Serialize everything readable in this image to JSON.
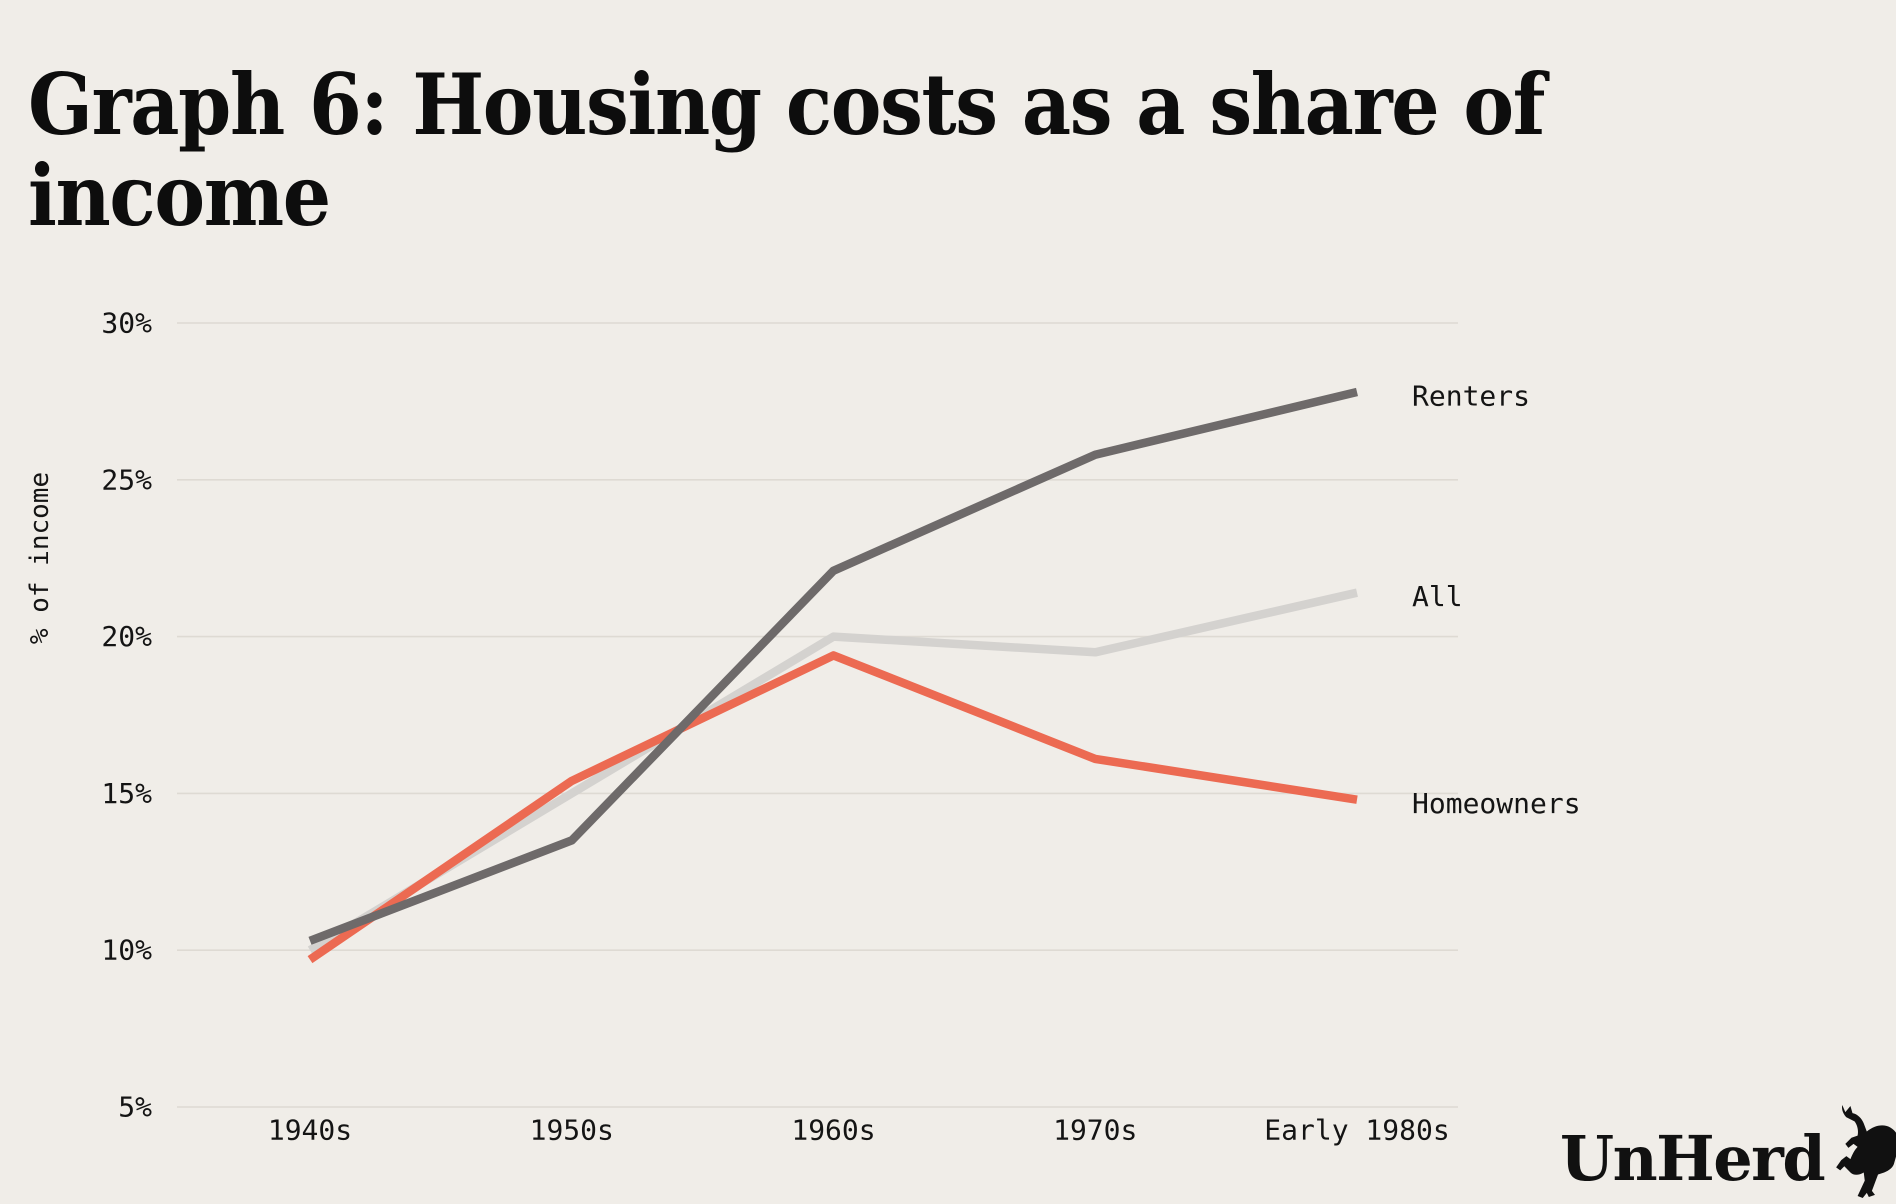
{
  "title": {
    "line1": "Graph 6: Housing costs as a share of",
    "line2": "income"
  },
  "logo": {
    "text": "UnHerd",
    "icon": "rearing-cow-icon"
  },
  "colors": {
    "background": "#f0ede8",
    "grid": "#dedad3",
    "text": "#141414",
    "renters": "#6e6a6a",
    "all": "#d4d2cf",
    "homeowners": "#ec6a52"
  },
  "chart_data": {
    "type": "line",
    "title": "Graph 6: Housing costs as a share of income",
    "xlabel": "",
    "ylabel": "% of income",
    "categories": [
      "1940s",
      "1950s",
      "1960s",
      "1970s",
      "Early 1980s"
    ],
    "y_ticks": [
      {
        "label": "30%",
        "value": 30
      },
      {
        "label": "25%",
        "value": 25
      },
      {
        "label": "20%",
        "value": 20
      },
      {
        "label": "15%",
        "value": 15
      },
      {
        "label": "10%",
        "value": 10
      },
      {
        "label": "5%",
        "value": 5
      }
    ],
    "ylim": [
      5,
      30
    ],
    "grid": "horizontal",
    "legend_position": "labels-at-line-ends-right",
    "series": [
      {
        "name": "Renters",
        "color": "#6e6a6a",
        "z": 3,
        "values": [
          10.3,
          13.5,
          22.1,
          25.8,
          27.8
        ]
      },
      {
        "name": "All",
        "color": "#d4d2cf",
        "z": 1,
        "values": [
          10.0,
          15.0,
          20.0,
          19.5,
          21.4
        ]
      },
      {
        "name": "Homeowners",
        "color": "#ec6a52",
        "z": 2,
        "values": [
          9.7,
          15.4,
          19.4,
          16.1,
          14.8
        ]
      }
    ]
  }
}
